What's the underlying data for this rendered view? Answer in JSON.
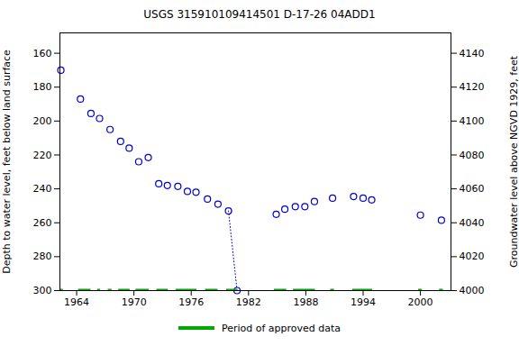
{
  "chart_data": {
    "type": "scatter",
    "title": "USGS 315910109414501 D-17-26 04ADD1",
    "x_label": null,
    "y_label": "Depth to water level, feet below land surface",
    "y2_label": "Groundwater level above NGVD 1929, feet",
    "x": [
      1962.35,
      1964.4,
      1965.5,
      1966.4,
      1967.5,
      1968.6,
      1969.5,
      1970.5,
      1971.5,
      1972.6,
      1973.5,
      1974.6,
      1975.6,
      1976.5,
      1977.7,
      1978.8,
      1979.9,
      1980.8,
      1984.9,
      1985.8,
      1986.9,
      1987.9,
      1988.9,
      1990.8,
      1993.0,
      1994.0,
      1994.9,
      2000.0,
      2002.2
    ],
    "series": [
      {
        "color": "#0000cc",
        "marker": "circle",
        "line_style": "none",
        "values": [
          170,
          187,
          195.5,
          198.5,
          205,
          212,
          216,
          224,
          221.5,
          237,
          238,
          238.5,
          241.5,
          242,
          246,
          249,
          253,
          300,
          255,
          252,
          250.5,
          250.5,
          247.5,
          245.5,
          244.5,
          245.5,
          246.5,
          255.5,
          258.5
        ]
      },
      {
        "color": "#0000cc",
        "marker": "none",
        "line_style": "dotted",
        "values": [
          null,
          null,
          null,
          null,
          null,
          null,
          null,
          null,
          null,
          null,
          null,
          null,
          null,
          null,
          null,
          null,
          253,
          300,
          null,
          null,
          null,
          null,
          null,
          null,
          null,
          null,
          null,
          null,
          null
        ]
      }
    ],
    "approved_periods": {
      "name": "Period of approved data",
      "color": "#00aa00",
      "ranges": [
        [
          1962.25,
          1962.6
        ],
        [
          1964.2,
          1965.5
        ],
        [
          1966.2,
          1966.5
        ],
        [
          1967.3,
          1967.7
        ],
        [
          1968.4,
          1969.6
        ],
        [
          1970.2,
          1971.6
        ],
        [
          1972.4,
          1973.6
        ],
        [
          1974.4,
          1976.6
        ],
        [
          1977.5,
          1978.8
        ],
        [
          1979.7,
          1980.8
        ],
        [
          1984.7,
          1986.0
        ],
        [
          1986.7,
          1989.0
        ],
        [
          1990.6,
          1991.0
        ],
        [
          1992.9,
          1995.0
        ],
        [
          1999.8,
          2000.2
        ],
        [
          2002.0,
          2002.4
        ]
      ]
    },
    "xlim": [
      1962.25,
      2003.2
    ],
    "xticks": [
      1964,
      1970,
      1976,
      1982,
      1988,
      1994,
      2000
    ],
    "ylim": [
      148,
      300
    ],
    "yticks": [
      160,
      180,
      200,
      220,
      240,
      260,
      280,
      300
    ],
    "y2lim": [
      4000,
      4152
    ],
    "y2ticks": [
      4000,
      4020,
      4040,
      4060,
      4080,
      4100,
      4120,
      4140
    ],
    "grid": false,
    "legend": "bottom"
  }
}
